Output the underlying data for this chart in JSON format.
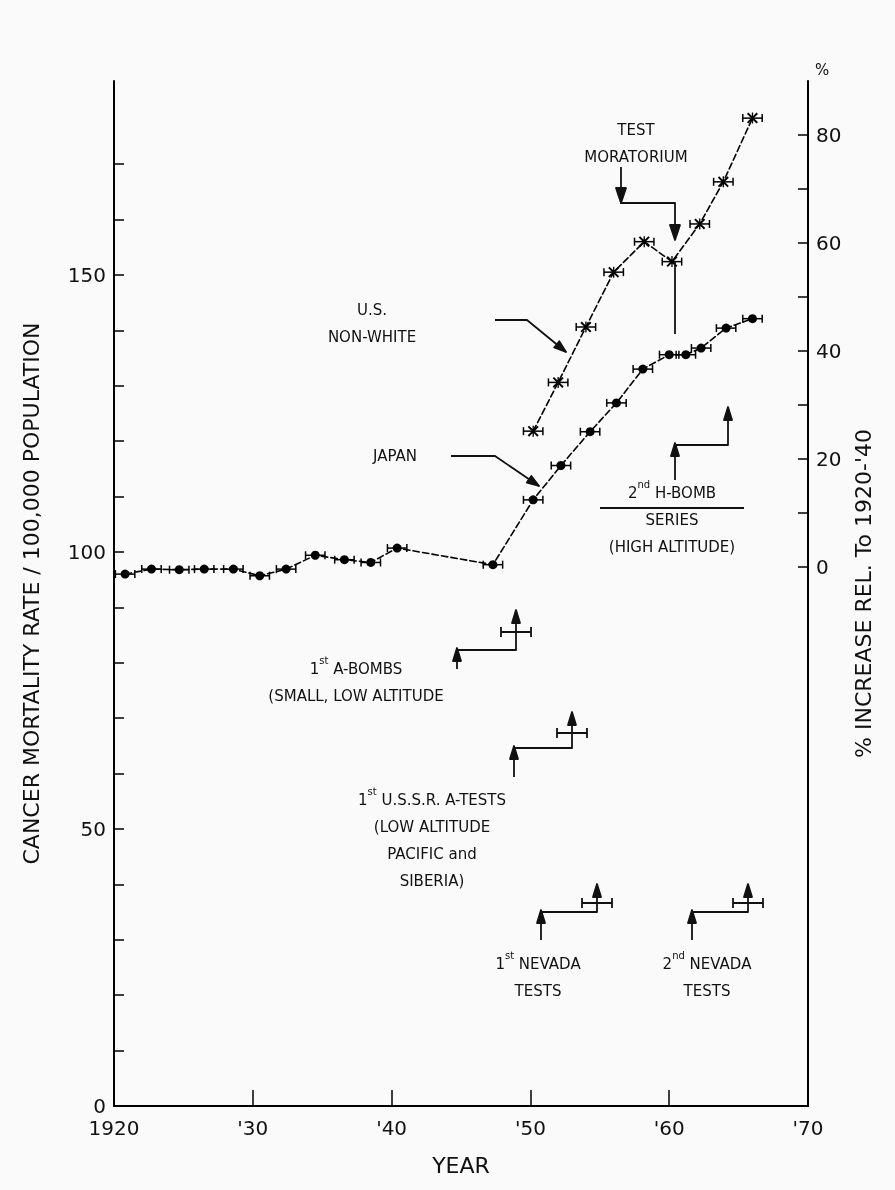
{
  "chart_data": {
    "type": "line",
    "xlabel": "YEAR",
    "ylabel": "CANCER MORTALITY RATE / 100,000 POPULATION",
    "y2label": "% INCREASE REL. To 1920-'40",
    "xlim": [
      1920,
      1970
    ],
    "xticks": [
      1920,
      {
        "value": 1930,
        "label": "'30"
      },
      {
        "value": 1940,
        "label": "'40"
      },
      {
        "value": 1950,
        "label": "'50"
      },
      {
        "value": 1960,
        "label": "'60"
      },
      {
        "value": 1970,
        "label": "'70"
      }
    ],
    "ylim": [
      0,
      185
    ],
    "yticks": [
      0,
      {
        "value": 10,
        "label": null
      },
      {
        "value": 20,
        "label": null
      },
      {
        "value": 30,
        "label": null
      },
      {
        "value": 40,
        "label": null
      },
      50,
      {
        "value": 60,
        "label": null
      },
      {
        "value": 70,
        "label": null
      },
      {
        "value": 80,
        "label": null
      },
      {
        "value": 90,
        "label": null
      },
      100,
      {
        "value": 110,
        "label": null
      },
      {
        "value": 120,
        "label": null
      },
      {
        "value": 130,
        "label": null
      },
      {
        "value": 140,
        "label": null
      },
      150,
      {
        "value": 160,
        "label": null
      },
      {
        "value": 170,
        "label": null
      }
    ],
    "y2lim": [
      -100,
      90
    ],
    "y2ticks": [
      0,
      {
        "value": 10,
        "label": null
      },
      20,
      {
        "value": 30,
        "label": null
      },
      40,
      {
        "value": 50,
        "label": null
      },
      60,
      {
        "value": 70,
        "label": null
      },
      80
    ],
    "series": [
      {
        "color": "#000000",
        "marker": "circle",
        "line_style": "dashed",
        "x": [
          1920.8,
          1922.7,
          1924.7,
          1926.5,
          1928.6,
          1930.5,
          1932.4,
          1934.5,
          1936.6,
          1938.5,
          1940.4,
          1947.3,
          1950.2,
          1952.2,
          1954.3,
          1956.2,
          1958.1,
          1960.0,
          1961.2,
          1962.3,
          1964.1,
          1966.0
        ],
        "values": [
          96.0,
          96.9,
          96.8,
          96.9,
          96.9,
          95.7,
          96.9,
          99.4,
          98.6,
          98.1,
          100.7,
          97.7,
          109.4,
          115.6,
          121.7,
          126.9,
          133.0,
          135.6,
          135.6,
          136.8,
          140.4,
          142.1
        ],
        "xerrors": [
          0.7,
          0.7,
          0.7,
          0.7,
          0.7,
          0.7,
          0.7,
          0.7,
          0.7,
          0.7,
          0.7,
          0.7,
          0.7,
          0.7,
          0.7,
          0.7,
          0.7,
          0.7,
          0.7,
          0.7,
          0.7,
          0.7
        ]
      },
      {
        "color": "#000000",
        "marker": "cross",
        "line_style": "dashed",
        "x": [
          1950.2,
          1952.0,
          1954.0,
          1956.0,
          1958.2,
          1960.2,
          1962.2,
          1963.9,
          1966.0
        ],
        "values": [
          121.8,
          130.6,
          140.6,
          150.5,
          156.0,
          152.4,
          159.2,
          166.8,
          178.3
        ],
        "xerrors": [
          0.7,
          0.7,
          0.7,
          0.7,
          0.7,
          0.7,
          0.7,
          0.7,
          0.7
        ]
      }
    ],
    "annotations": [
      "TEST\nMORATORIUM",
      "U.S.\nNON-WHITE",
      "JAPAN",
      "2$^{nd}$ H-BOMB\nSERIES\n(HIGH ALTITUDE)",
      "1$^{st}$ A-BOMBS\n(SMALL, LOW ALTITUDE",
      "1$^{st}$ U.S.S.R. A-TESTS\n(LOW ALTITUDE\nPACIFIC and\nSIBERIA)",
      "1$^{st}$ NEVADA\nTESTS",
      "2$^{nd}$ NEVADA\nTESTS",
      "%"
    ]
  }
}
